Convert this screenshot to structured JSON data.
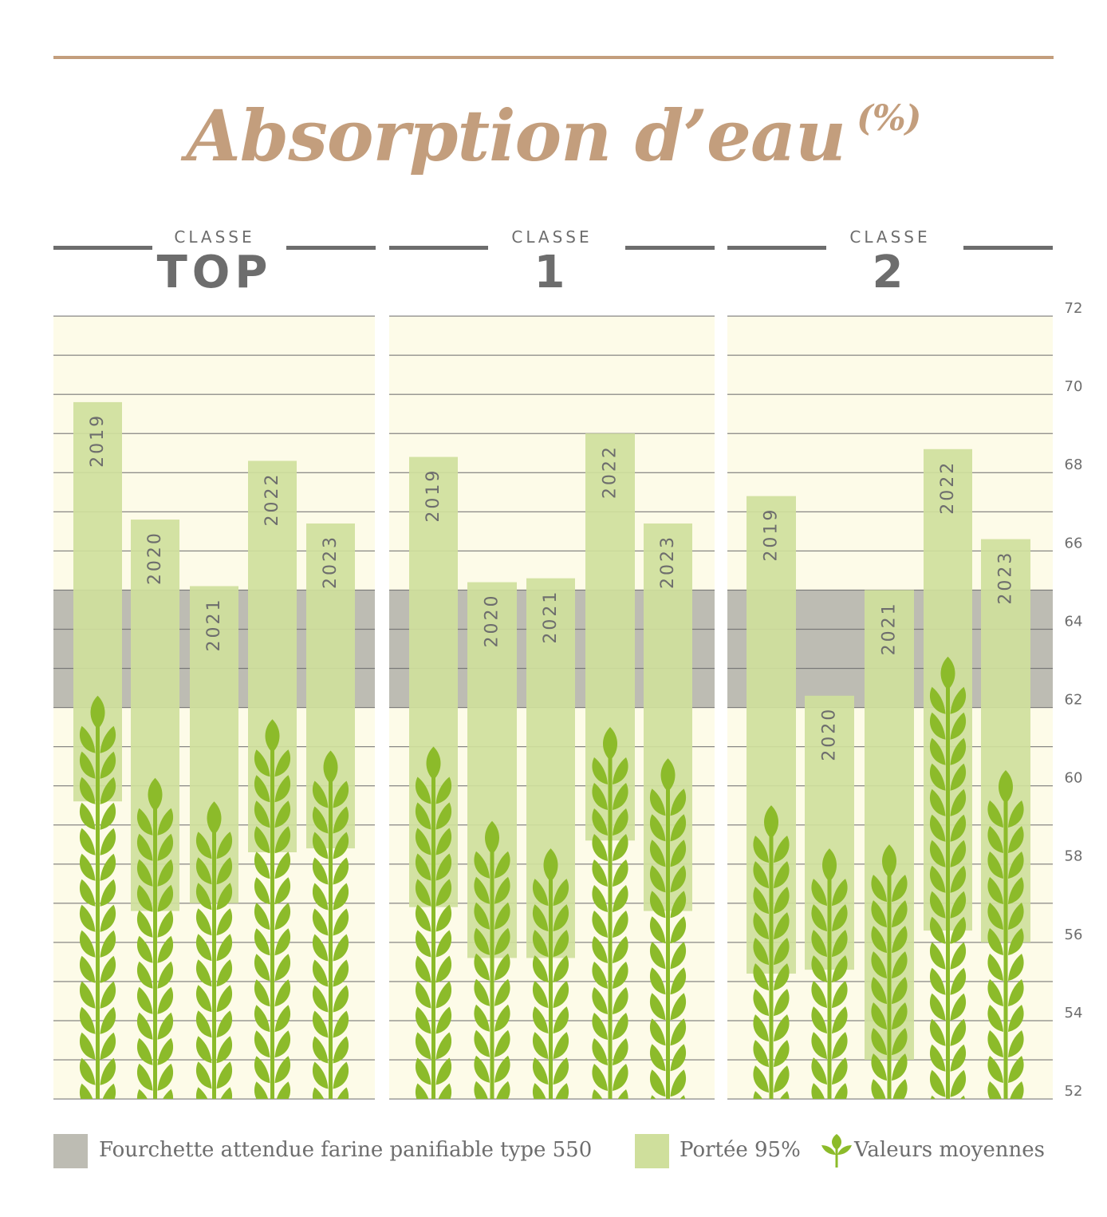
{
  "title": "Absorption d’eau",
  "title_unit": "(%)",
  "panels": [
    {
      "classe": "CLASSE",
      "name": "TOP"
    },
    {
      "classe": "CLASSE",
      "name": "1"
    },
    {
      "classe": "CLASSE",
      "name": "2"
    }
  ],
  "legend": {
    "band": "Fourchette attendue farine panifiable type 550",
    "range": "Portée 95%",
    "mean": "Valeurs moyennes"
  },
  "colors": {
    "accent": "#c39e7d",
    "background": "#fdfbe8",
    "band": "#bdbcb3",
    "range": "#cfdf9c",
    "wheat": "#8cbb2a",
    "text": "#6d6d6d"
  },
  "chart_data": {
    "type": "bar",
    "y_axis": {
      "min": 52,
      "max": 72,
      "ticks": [
        52,
        54,
        56,
        58,
        60,
        62,
        64,
        66,
        68,
        70,
        72
      ],
      "position": "right"
    },
    "band": {
      "low": 62,
      "high": 65
    },
    "panels": [
      {
        "name": "TOP",
        "categories": [
          "2019",
          "2020",
          "2021",
          "2022",
          "2023"
        ],
        "range_low": [
          59.6,
          56.8,
          57.0,
          58.3,
          58.4
        ],
        "range_high": [
          69.8,
          66.8,
          65.1,
          68.3,
          66.7
        ],
        "mean": [
          62.3,
          60.2,
          59.6,
          61.7,
          60.9
        ]
      },
      {
        "name": "1",
        "categories": [
          "2019",
          "2020",
          "2021",
          "2022",
          "2023"
        ],
        "range_low": [
          56.9,
          55.6,
          55.6,
          58.6,
          56.8
        ],
        "range_high": [
          68.4,
          65.2,
          65.3,
          69.0,
          66.7
        ],
        "mean": [
          61.0,
          59.1,
          58.4,
          61.5,
          60.7
        ]
      },
      {
        "name": "2",
        "categories": [
          "2019",
          "2020",
          "2021",
          "2022",
          "2023"
        ],
        "range_low": [
          55.2,
          55.3,
          53.0,
          56.3,
          56.0
        ],
        "range_high": [
          67.4,
          62.3,
          65.0,
          68.6,
          66.3
        ],
        "mean": [
          59.5,
          58.4,
          58.5,
          63.3,
          60.4
        ]
      }
    ]
  }
}
